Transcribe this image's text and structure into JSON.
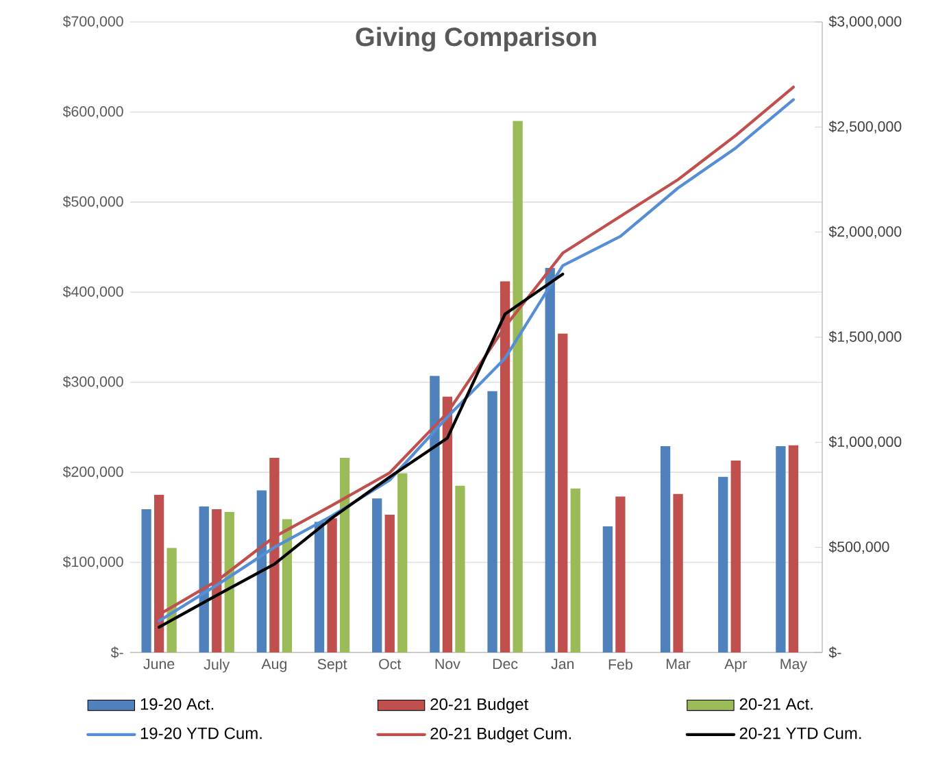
{
  "chart_data": {
    "type": "bar",
    "title": "Giving Comparison",
    "categories": [
      "June",
      "July",
      "Aug",
      "Sept",
      "Oct",
      "Nov",
      "Dec",
      "Jan",
      "Feb",
      "Mar",
      "Apr",
      "May"
    ],
    "series": [
      {
        "name": "19-20 Act.",
        "color": "#4f81bd",
        "values": [
          159000,
          162000,
          180000,
          145000,
          171000,
          307000,
          290000,
          427000,
          140000,
          229000,
          195000,
          229000
        ]
      },
      {
        "name": "20-21 Budget",
        "color": "#c0504d",
        "values": [
          175000,
          159000,
          216000,
          149000,
          153000,
          284000,
          412000,
          354000,
          173000,
          176000,
          213000,
          230000
        ]
      },
      {
        "name": "20-21 Act.",
        "color": "#9bbb59",
        "values": [
          116000,
          156000,
          148000,
          216000,
          199000,
          185000,
          590000,
          182000,
          null,
          null,
          null,
          null
        ]
      },
      {
        "name": "19-20 YTD Cum.",
        "type": "line",
        "axis": "y2",
        "color": "#558ed5",
        "values": [
          150000,
          320000,
          500000,
          650000,
          820000,
          1120000,
          1400000,
          1840000,
          1980000,
          2210000,
          2400000,
          2630000
        ]
      },
      {
        "name": "20-21 Budget Cum.",
        "type": "line",
        "axis": "y2",
        "color": "#c0504d",
        "values": [
          180000,
          340000,
          550000,
          700000,
          855000,
          1140000,
          1550000,
          1900000,
          2075000,
          2250000,
          2460000,
          2690000
        ]
      },
      {
        "name": "20-21 YTD Cum.",
        "type": "line",
        "axis": "y2",
        "color": "#000000",
        "values": [
          120000,
          272000,
          420000,
          640000,
          835000,
          1020000,
          1610000,
          1800000,
          null,
          null,
          null,
          null
        ]
      }
    ],
    "ylim": [
      0,
      700000
    ],
    "yticks": [
      {
        "value": 0,
        "label": "$-"
      },
      {
        "value": 100000,
        "label": "$100,000"
      },
      {
        "value": 200000,
        "label": "$200,000"
      },
      {
        "value": 300000,
        "label": "$300,000"
      },
      {
        "value": 400000,
        "label": "$400,000"
      },
      {
        "value": 500000,
        "label": "$500,000"
      },
      {
        "value": 600000,
        "label": "$600,000"
      },
      {
        "value": 700000,
        "label": "$700,000"
      }
    ],
    "y2lim": [
      0,
      3000000
    ],
    "y2ticks": [
      {
        "value": 0,
        "label": "$-"
      },
      {
        "value": 500000,
        "label": "$500,000"
      },
      {
        "value": 1000000,
        "label": "$1,000,000"
      },
      {
        "value": 1500000,
        "label": "$1,500,000"
      },
      {
        "value": 2000000,
        "label": "$2,000,000"
      },
      {
        "value": 2500000,
        "label": "$2,500,000"
      },
      {
        "value": 3000000,
        "label": "$3,000,000"
      }
    ],
    "grid": "y",
    "legend": "bottom",
    "marker": "none",
    "line_style": "solid"
  }
}
